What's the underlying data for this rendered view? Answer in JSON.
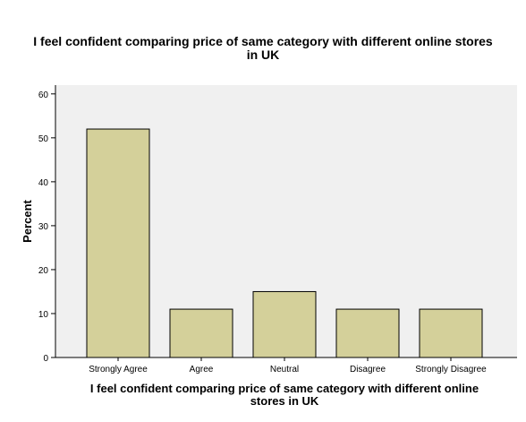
{
  "chart_data": {
    "type": "bar",
    "title_lines": [
      "I feel confident comparing price of same category with different online stores",
      "in UK"
    ],
    "xlabel_lines": [
      "I feel confident comparing price of same category with different online",
      "stores in UK"
    ],
    "ylabel": "Percent",
    "categories": [
      "Strongly Agree",
      "Agree",
      "Neutral",
      "Disagree",
      "Strongly Disagree"
    ],
    "values": [
      52,
      11,
      15,
      11,
      11
    ],
    "ylim": [
      0,
      62
    ],
    "yticks": [
      "0",
      "10",
      "20",
      "30",
      "40",
      "50",
      "60"
    ],
    "grid": false,
    "colors": {
      "bar_fill": "#D4D09A",
      "bar_stroke": "#000000",
      "plot_background": "#F0F0F0",
      "axis": "#000000"
    }
  }
}
